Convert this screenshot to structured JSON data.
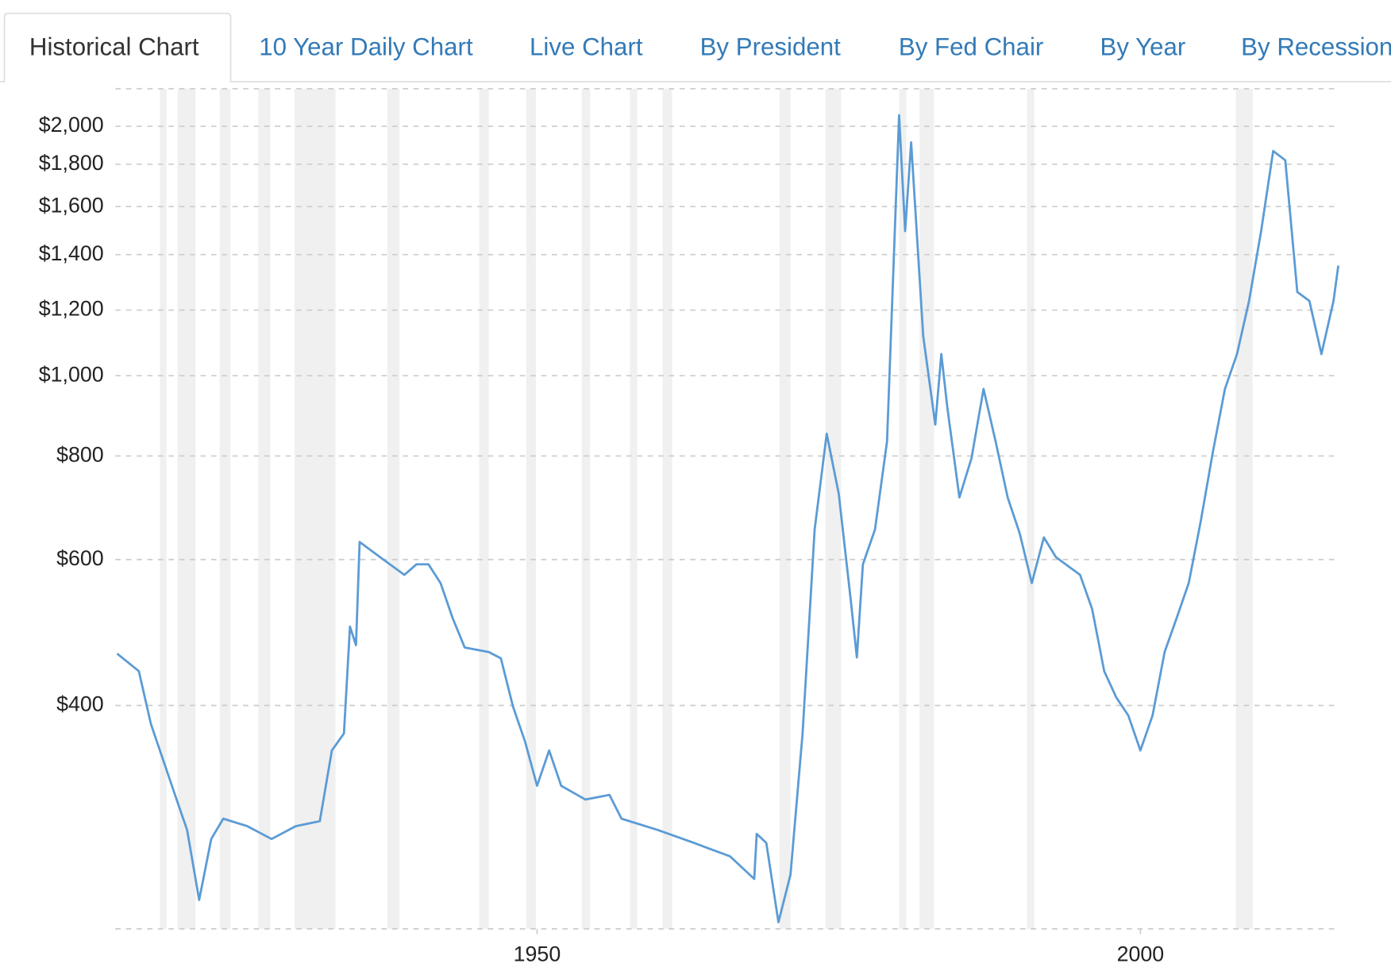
{
  "tabs": [
    "Historical Chart",
    "10 Year Daily Chart",
    "Live Chart",
    "By President",
    "By Fed Chair",
    "By Year",
    "By Recession"
  ],
  "chart_data": {
    "type": "line",
    "color": "#5b9bd5",
    "log_scale": true,
    "grid": true,
    "xlim": [
      1915.2,
      2016.5
    ],
    "xticks": [
      1950,
      2000
    ],
    "ylim": [
      215,
      2220
    ],
    "yticks": [
      {
        "value": 400,
        "label": "$400"
      },
      {
        "value": 600,
        "label": "$600"
      },
      {
        "value": 800,
        "label": "$800"
      },
      {
        "value": 1000,
        "label": "$1,000"
      },
      {
        "value": 1200,
        "label": "$1,200"
      },
      {
        "value": 1400,
        "label": "$1,400"
      },
      {
        "value": 1600,
        "label": "$1,600"
      },
      {
        "value": 1800,
        "label": "$1,800"
      },
      {
        "value": 2000,
        "label": "$2,000"
      }
    ],
    "recession_bands": [
      [
        1918.75,
        1919.3
      ],
      [
        1920.2,
        1921.7
      ],
      [
        1923.7,
        1924.6
      ],
      [
        1926.9,
        1927.9
      ],
      [
        1929.9,
        1933.3
      ],
      [
        1937.6,
        1938.6
      ],
      [
        1945.2,
        1946.0
      ],
      [
        1949.1,
        1949.9
      ],
      [
        1953.7,
        1954.4
      ],
      [
        1957.7,
        1958.3
      ],
      [
        1960.4,
        1961.2
      ],
      [
        1970.1,
        1971.0
      ],
      [
        1973.9,
        1975.2
      ],
      [
        1980.0,
        1980.6
      ],
      [
        1981.7,
        1982.9
      ],
      [
        1990.6,
        1991.2
      ],
      [
        2007.9,
        2009.3
      ]
    ],
    "x": [
      1915.2,
      1917,
      1918,
      1920,
      1921,
      1922,
      1923,
      1924,
      1926,
      1928,
      1930,
      1932,
      1933,
      1934,
      1934.5,
      1935,
      1935.3,
      1937,
      1939,
      1940,
      1941,
      1942,
      1943,
      1944,
      1946,
      1947,
      1948,
      1949,
      1950,
      1951,
      1952,
      1954,
      1956,
      1957,
      1960,
      1963,
      1966,
      1968,
      1968.2,
      1969,
      1970,
      1971,
      1972,
      1973,
      1974,
      1975,
      1976,
      1976.5,
      1977,
      1978,
      1979,
      1980,
      1980.5,
      1981,
      1982,
      1983,
      1983.5,
      1984,
      1985,
      1986,
      1987,
      1988,
      1989,
      1990,
      1991,
      1992,
      1993,
      1995,
      1996,
      1997,
      1998,
      1999,
      2000,
      2001,
      2002,
      2003,
      2004,
      2005,
      2006,
      2007,
      2008,
      2009,
      2010,
      2011,
      2012,
      2013,
      2014,
      2015,
      2016,
      2016.4
    ],
    "values": [
      462,
      440,
      380,
      312,
      283,
      233,
      276,
      292,
      286,
      276,
      286,
      290,
      353,
      370,
      498,
      473,
      630,
      604,
      575,
      592,
      592,
      562,
      510,
      470,
      464,
      456,
      399,
      362,
      320,
      353,
      320,
      308,
      312,
      292,
      283,
      273,
      263,
      247,
      280,
      273,
      219,
      250,
      370,
      652,
      851,
      720,
      535,
      457,
      592,
      652,
      833,
      2062,
      1495,
      1913,
      1116,
      873,
      1062,
      915,
      713,
      795,
      964,
      833,
      713,
      645,
      562,
      638,
      604,
      575,
      523,
      440,
      409,
      389,
      353,
      389,
      464,
      510,
      562,
      668,
      809,
      964,
      1062,
      1231,
      1495,
      1867,
      1820,
      1262,
      1231,
      1062,
      1231,
      1358
    ]
  }
}
